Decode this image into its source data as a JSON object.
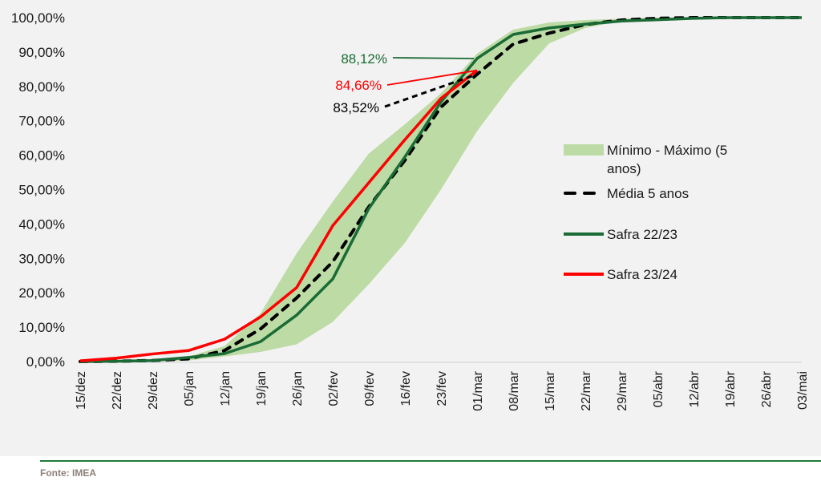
{
  "chart_data": {
    "type": "line",
    "title": "",
    "xlabel": "",
    "ylabel": "",
    "ylim": [
      0,
      100
    ],
    "yticks": [
      "0,00%",
      "10,00%",
      "20,00%",
      "30,00%",
      "40,00%",
      "50,00%",
      "60,00%",
      "70,00%",
      "80,00%",
      "90,00%",
      "100,00%"
    ],
    "grid": false,
    "legend_position": "right",
    "categories": [
      "15/dez",
      "22/dez",
      "29/dez",
      "05/jan",
      "12/jan",
      "19/jan",
      "26/jan",
      "02/fev",
      "09/fev",
      "16/fev",
      "23/fev",
      "01/mar",
      "08/mar",
      "15/mar",
      "22/mar",
      "29/mar",
      "05/abr",
      "12/abr",
      "19/abr",
      "26/abr",
      "03/mai"
    ],
    "band": {
      "name": "Mínimo - Máximo (5 anos)",
      "color": "#bddba5",
      "min": [
        0.0,
        0.0,
        0.0,
        0.3,
        1.5,
        2.8,
        5.0,
        11.5,
        22.5,
        34.5,
        50.0,
        67.0,
        81.0,
        92.5,
        97.0,
        99.0,
        99.6,
        100.0,
        100.0,
        100.0,
        100.0
      ],
      "max": [
        0.0,
        0.2,
        0.6,
        1.5,
        4.5,
        14.0,
        31.5,
        46.5,
        60.5,
        69.0,
        78.0,
        89.5,
        96.5,
        98.6,
        99.3,
        99.7,
        100.0,
        100.0,
        100.0,
        100.0,
        100.0
      ]
    },
    "series": [
      {
        "name": "Média 5 anos",
        "color": "#000000",
        "style": "dashed",
        "values": [
          0.0,
          0.1,
          0.3,
          0.8,
          3.2,
          9.5,
          18.5,
          29.0,
          45.0,
          58.5,
          74.0,
          83.52,
          92.3,
          95.5,
          98.0,
          99.3,
          99.8,
          100.0,
          100.0,
          100.0,
          100.0
        ]
      },
      {
        "name": "Safra 22/23",
        "color": "#1a6b35",
        "style": "solid",
        "values": [
          0.0,
          0.1,
          0.3,
          1.2,
          2.3,
          5.8,
          13.5,
          24.0,
          44.5,
          59.5,
          75.5,
          88.12,
          95.1,
          97.0,
          98.1,
          99.0,
          99.4,
          99.8,
          100.0,
          100.0,
          100.0
        ]
      },
      {
        "name": "Safra 23/24",
        "color": "#ff0000",
        "style": "solid",
        "values": [
          0.2,
          1.0,
          2.2,
          3.2,
          6.5,
          13.0,
          21.5,
          39.5,
          52.0,
          64.5,
          76.5,
          84.66
        ]
      }
    ],
    "legend": [
      {
        "label_line1": "Mínimo - Máximo (5",
        "label_line2": "anos)",
        "kind": "area",
        "color": "#bddba5"
      },
      {
        "label_line1": "Média 5 anos",
        "kind": "dashed",
        "color": "#000000"
      },
      {
        "label_line1": "Safra 22/23",
        "kind": "line",
        "color": "#1a6b35"
      },
      {
        "label_line1": "Safra 23/24",
        "kind": "line",
        "color": "#ff0000"
      }
    ],
    "annotations": [
      {
        "text": "88,12%",
        "series": "Safra 22/23",
        "category": "01/mar",
        "value": 88.12,
        "color": "#1a6b35",
        "style": "solid"
      },
      {
        "text": "84,66%",
        "series": "Safra 23/24",
        "category": "01/mar",
        "value": 84.66,
        "color": "#ff0000",
        "style": "solid"
      },
      {
        "text": "83,52%",
        "series": "Média 5 anos",
        "category": "01/mar",
        "value": 83.52,
        "color": "#000000",
        "style": "dashed"
      }
    ]
  },
  "footer": {
    "source": "Fonte: IMEA",
    "rule_color": "#1e7a3c"
  }
}
